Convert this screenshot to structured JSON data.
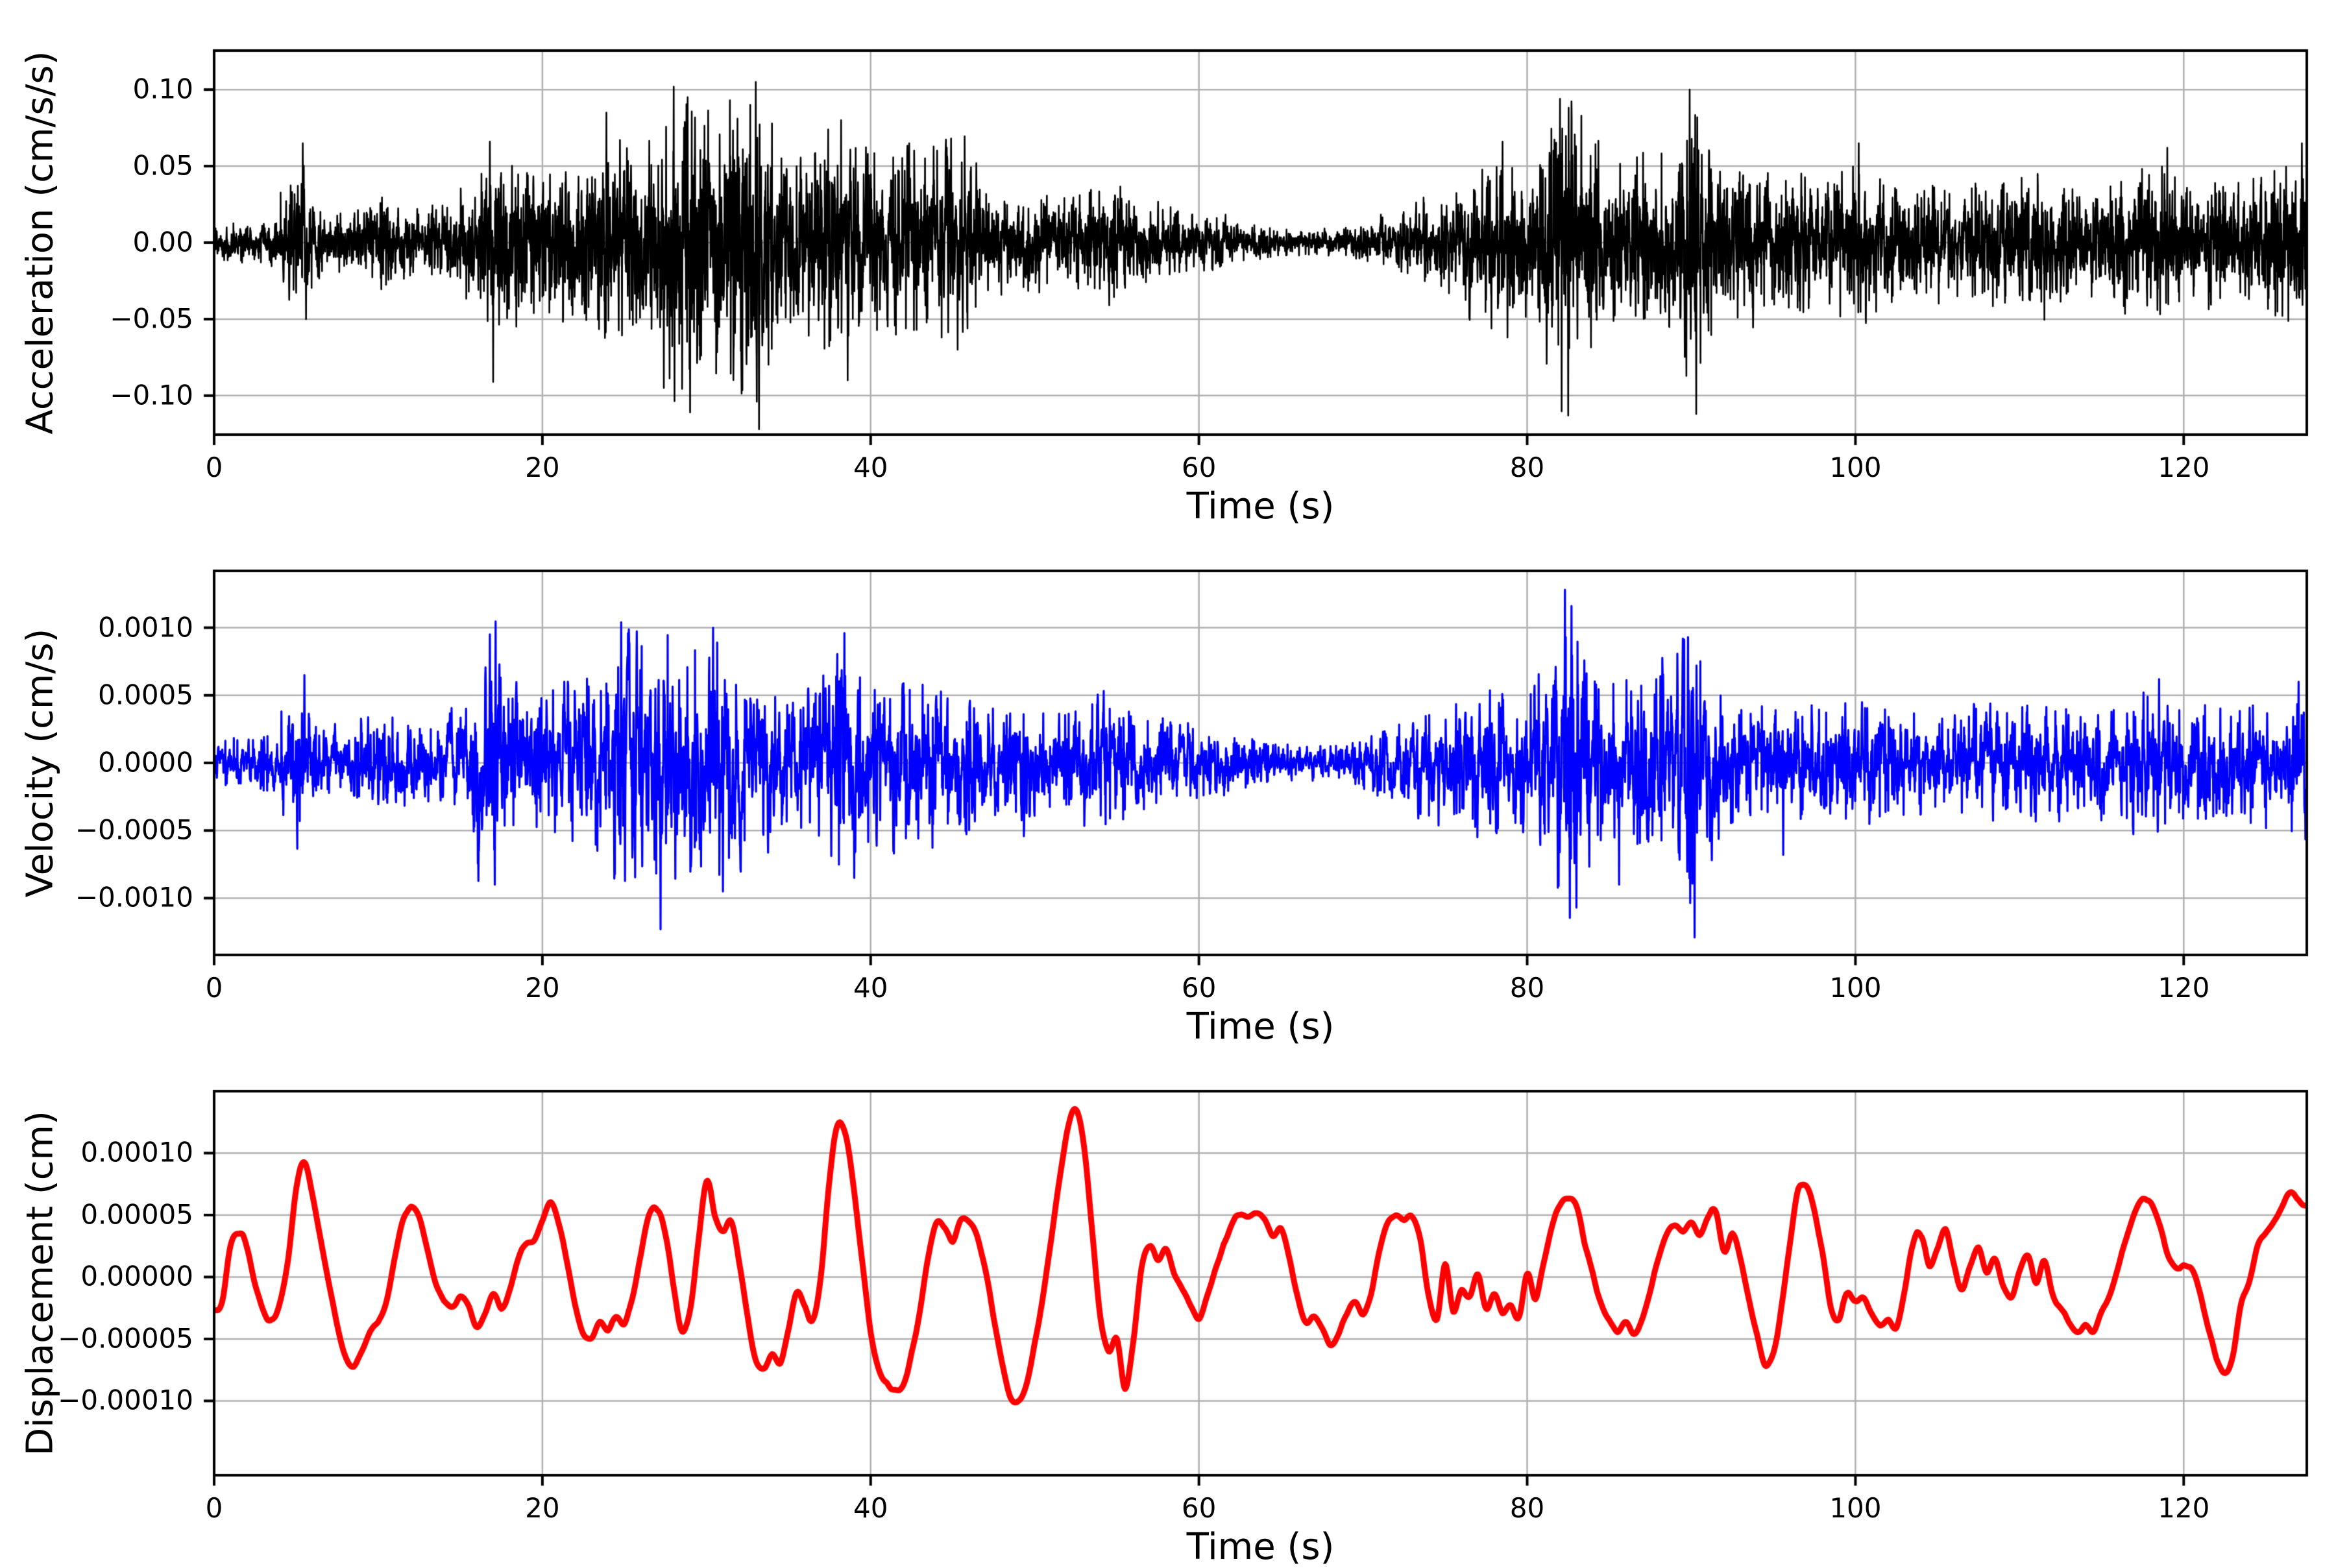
{
  "figure": {
    "background": "#ffffff",
    "grid_color": "#b0b0b0",
    "axes_color": "#000000"
  },
  "chart_data": [
    {
      "type": "line",
      "id": "acceleration",
      "ylabel": "Acceleration (cm/s/s)",
      "xlabel": "Time (s)",
      "unit": "cm/s/s",
      "line_color": "#000000",
      "grid": true,
      "legend": "none",
      "xlim": [
        0,
        127.5
      ],
      "ylim": [
        -0.1255,
        0.1255
      ],
      "xticks": [
        0,
        20,
        40,
        60,
        80,
        100,
        120
      ],
      "yticks": [
        0.1,
        0.05,
        0.0,
        -0.05,
        -0.1
      ],
      "ytick_labels": [
        "0.10",
        "0.05",
        "0.00",
        "−0.05",
        "−0.10"
      ],
      "signal": "broadband seismic noise; per-second peak-amplitude envelope below",
      "envelope_step_s": 1,
      "envelope": [
        0.013,
        0.014,
        0.013,
        0.015,
        0.018,
        0.055,
        0.03,
        0.02,
        0.022,
        0.025,
        0.03,
        0.028,
        0.025,
        0.022,
        0.025,
        0.03,
        0.045,
        0.075,
        0.055,
        0.05,
        0.055,
        0.05,
        0.06,
        0.055,
        0.065,
        0.07,
        0.06,
        0.075,
        0.095,
        0.105,
        0.1,
        0.095,
        0.11,
        0.115,
        0.07,
        0.06,
        0.06,
        0.07,
        0.08,
        0.06,
        0.075,
        0.06,
        0.07,
        0.06,
        0.065,
        0.07,
        0.055,
        0.04,
        0.035,
        0.03,
        0.032,
        0.03,
        0.035,
        0.035,
        0.04,
        0.042,
        0.03,
        0.025,
        0.025,
        0.022,
        0.02,
        0.018,
        0.015,
        0.013,
        0.012,
        0.011,
        0.009,
        0.008,
        0.009,
        0.011,
        0.013,
        0.016,
        0.02,
        0.025,
        0.03,
        0.035,
        0.04,
        0.045,
        0.06,
        0.055,
        0.05,
        0.07,
        0.1,
        0.095,
        0.06,
        0.055,
        0.06,
        0.065,
        0.06,
        0.08,
        0.11,
        0.07,
        0.055,
        0.05,
        0.045,
        0.05,
        0.045,
        0.05,
        0.045,
        0.05,
        0.055,
        0.05,
        0.04,
        0.042,
        0.038,
        0.04,
        0.035,
        0.04,
        0.045,
        0.04,
        0.045,
        0.05,
        0.045,
        0.04,
        0.035,
        0.04,
        0.045,
        0.05,
        0.055,
        0.05,
        0.04,
        0.042,
        0.045,
        0.04,
        0.045,
        0.05,
        0.055,
        0.06
      ],
      "spikes": [
        {
          "t": 5.4,
          "v": 0.065
        },
        {
          "t": 5.6,
          "v": -0.05
        },
        {
          "t": 16.8,
          "v": 0.066
        },
        {
          "t": 17.0,
          "v": -0.091
        },
        {
          "t": 23.9,
          "v": 0.085
        },
        {
          "t": 27.4,
          "v": -0.095
        },
        {
          "t": 28.0,
          "v": 0.102
        },
        {
          "t": 29.0,
          "v": -0.111
        },
        {
          "t": 33.0,
          "v": 0.105
        },
        {
          "t": 33.2,
          "v": -0.122
        },
        {
          "t": 38.2,
          "v": 0.08
        },
        {
          "t": 38.6,
          "v": -0.09
        },
        {
          "t": 44.9,
          "v": 0.068
        },
        {
          "t": 45.3,
          "v": -0.07
        },
        {
          "t": 78.5,
          "v": 0.066
        },
        {
          "t": 78.8,
          "v": -0.062
        },
        {
          "t": 82.0,
          "v": 0.094
        },
        {
          "t": 82.5,
          "v": -0.113
        },
        {
          "t": 83.3,
          "v": 0.083
        },
        {
          "t": 89.9,
          "v": 0.1
        },
        {
          "t": 90.3,
          "v": -0.112
        },
        {
          "t": 100.2,
          "v": 0.065
        },
        {
          "t": 119.0,
          "v": 0.062
        },
        {
          "t": 127.2,
          "v": 0.065
        }
      ]
    },
    {
      "type": "line",
      "id": "velocity",
      "ylabel": "Velocity (cm/s)",
      "xlabel": "Time (s)",
      "unit": "cm/s",
      "line_color": "#0000ff",
      "grid": true,
      "legend": "none",
      "xlim": [
        0,
        127.5
      ],
      "ylim": [
        -0.00142,
        0.00142
      ],
      "xticks": [
        0,
        20,
        40,
        60,
        80,
        100,
        120
      ],
      "yticks": [
        0.001,
        0.0005,
        0.0,
        -0.0005,
        -0.001
      ],
      "ytick_labels": [
        "0.0010",
        "0.0005",
        "0.0000",
        "−0.0005",
        "−0.0010"
      ],
      "signal": "band-passed seismic noise; per-second peak-amplitude envelope below",
      "envelope_step_s": 1,
      "envelope": [
        0.00018,
        0.0002,
        0.00018,
        0.0002,
        0.00025,
        0.00062,
        0.0003,
        0.00022,
        0.00025,
        0.0003,
        0.00035,
        0.0004,
        0.00032,
        0.0003,
        0.00032,
        0.00035,
        0.0006,
        0.00095,
        0.0006,
        0.00055,
        0.0006,
        0.00065,
        0.0007,
        0.00065,
        0.0008,
        0.00105,
        0.0008,
        0.00122,
        0.0008,
        0.0009,
        0.001,
        0.0009,
        0.0007,
        0.0006,
        0.00055,
        0.0005,
        0.00055,
        0.0007,
        0.00095,
        0.0008,
        0.0006,
        0.00055,
        0.0006,
        0.00065,
        0.0006,
        0.00055,
        0.0006,
        0.0005,
        0.00045,
        0.0004,
        0.00045,
        0.0004,
        0.00042,
        0.00045,
        0.0005,
        0.00048,
        0.0004,
        0.00035,
        0.00035,
        0.0003,
        0.00028,
        0.00025,
        0.00022,
        0.0002,
        0.00018,
        0.00016,
        0.00014,
        0.00013,
        0.00014,
        0.00016,
        0.0002,
        0.00025,
        0.0003,
        0.00035,
        0.0004,
        0.00045,
        0.0005,
        0.00055,
        0.0006,
        0.00055,
        0.0006,
        0.0008,
        0.00128,
        0.00115,
        0.0007,
        0.0006,
        0.00065,
        0.0007,
        0.00065,
        0.0008,
        0.00125,
        0.0007,
        0.0005,
        0.00045,
        0.0004,
        0.00045,
        0.0004,
        0.00045,
        0.0004,
        0.00045,
        0.0005,
        0.00045,
        0.0004,
        0.00042,
        0.00038,
        0.0004,
        0.00038,
        0.0004,
        0.00045,
        0.0004,
        0.00045,
        0.0005,
        0.00045,
        0.0004,
        0.00038,
        0.0004,
        0.00045,
        0.0005,
        0.00055,
        0.0005,
        0.00042,
        0.00045,
        0.00048,
        0.00042,
        0.00045,
        0.0005,
        0.00055,
        0.0006
      ],
      "spikes": [
        {
          "t": 5.5,
          "v": 0.00065
        },
        {
          "t": 16.8,
          "v": 0.00095
        },
        {
          "t": 17.1,
          "v": -0.0009
        },
        {
          "t": 24.8,
          "v": 0.00104
        },
        {
          "t": 27.2,
          "v": -0.00123
        },
        {
          "t": 30.4,
          "v": 0.001
        },
        {
          "t": 31.0,
          "v": -0.00095
        },
        {
          "t": 38.4,
          "v": 0.00096
        },
        {
          "t": 39.0,
          "v": -0.00085
        },
        {
          "t": 82.3,
          "v": 0.00128
        },
        {
          "t": 82.7,
          "v": 0.00116
        },
        {
          "t": 83.0,
          "v": -0.00107
        },
        {
          "t": 85.6,
          "v": -0.0009
        },
        {
          "t": 89.8,
          "v": 0.00093
        },
        {
          "t": 90.2,
          "v": -0.00129
        },
        {
          "t": 95.6,
          "v": -0.00068
        },
        {
          "t": 118.5,
          "v": 0.00062
        },
        {
          "t": 127.0,
          "v": 0.0006
        }
      ]
    },
    {
      "type": "line",
      "id": "displacement",
      "ylabel": "Displacement (cm)",
      "xlabel": "Time (s)",
      "unit": "cm",
      "line_color": "#ff0000",
      "grid": true,
      "legend": "none",
      "xlim": [
        0,
        127.5
      ],
      "ylim": [
        -0.00016,
        0.00015
      ],
      "xticks": [
        0,
        20,
        40,
        60,
        80,
        100,
        120
      ],
      "yticks": [
        0.0001,
        5e-05,
        0.0,
        -5e-05,
        -0.0001
      ],
      "ytick_labels": [
        "0.00010",
        "0.00005",
        "0.00000",
        "−0.00005",
        "−0.00010"
      ],
      "signal": "smooth displacement trace sampled every 0.5 s; values in units of 1e-5 cm",
      "x_step": 0.5,
      "unit_scale": 1e-05,
      "values": [
        -2.7,
        -1.8,
        2.8,
        3.7,
        2.6,
        -0.5,
        -2.7,
        -3.6,
        -2.2,
        1.5,
        7.0,
        9.2,
        6.5,
        3.0,
        -0.5,
        -3.8,
        -6.4,
        -7.3,
        -6.2,
        -4.6,
        -3.6,
        -2.0,
        1.5,
        4.6,
        5.6,
        4.8,
        2.2,
        -0.4,
        -1.8,
        -2.6,
        -1.6,
        -2.2,
        -4.0,
        -3.0,
        -1.4,
        -2.4,
        -1.0,
        1.4,
        2.6,
        3.0,
        4.6,
        6.0,
        4.4,
        1.2,
        -2.2,
        -4.6,
        -4.9,
        -3.6,
        -4.2,
        -3.2,
        -3.8,
        -1.6,
        2.0,
        5.0,
        5.6,
        3.4,
        -0.8,
        -4.4,
        -2.6,
        3.0,
        7.8,
        5.2,
        3.6,
        4.6,
        1.2,
        -3.2,
        -6.6,
        -7.4,
        -6.2,
        -6.8,
        -4.2,
        -1.2,
        -2.4,
        -3.4,
        0.6,
        8.0,
        12.4,
        11.2,
        6.6,
        1.0,
        -4.4,
        -7.6,
        -8.8,
        -9.0,
        -8.4,
        -6.0,
        -2.8,
        1.6,
        4.4,
        4.0,
        3.0,
        4.6,
        4.4,
        3.2,
        0.6,
        -3.2,
        -6.8,
        -9.6,
        -10.0,
        -8.6,
        -5.4,
        -1.6,
        3.0,
        8.0,
        12.0,
        13.4,
        10.4,
        3.6,
        -3.4,
        -6.0,
        -5.0,
        -9.0,
        -5.2,
        0.6,
        2.4,
        1.2,
        2.2,
        0.2,
        -1.0,
        -2.4,
        -3.4,
        -1.4,
        0.6,
        2.4,
        4.2,
        5.0,
        4.8,
        5.2,
        4.6,
        3.4,
        4.0,
        1.8,
        -1.4,
        -3.6,
        -3.0,
        -4.0,
        -5.4,
        -4.6,
        -3.0,
        -2.0,
        -3.0,
        -1.2,
        2.2,
        4.6,
        5.0,
        4.6,
        5.0,
        3.0,
        -1.6,
        -3.2,
        1.2,
        -2.6,
        -1.0,
        -1.6,
        0.2,
        -2.8,
        -1.4,
        -3.0,
        -2.4,
        -3.4,
        0.4,
        -1.8,
        1.0,
        4.0,
        6.0,
        6.5,
        5.8,
        3.0,
        0.4,
        -2.0,
        -3.6,
        -4.4,
        -3.6,
        -4.7,
        -3.4,
        -1.2,
        1.6,
        3.6,
        4.2,
        3.8,
        4.4,
        3.4,
        4.6,
        5.2,
        2.0,
        3.4,
        1.4,
        -1.8,
        -4.8,
        -7.2,
        -6.0,
        -2.4,
        2.6,
        7.0,
        7.4,
        5.4,
        2.0,
        -2.3,
        -3.5,
        -1.4,
        -2.2,
        -1.6,
        -3.0,
        -3.7,
        -3.4,
        -4.0,
        -1.2,
        2.6,
        3.3,
        0.9,
        2.4,
        3.7,
        1.0,
        -1.2,
        0.8,
        2.3,
        0.4,
        1.5,
        -0.8,
        -1.7,
        0.6,
        1.8,
        -0.6,
        1.4,
        -1.4,
        -2.4,
        -3.5,
        -4.3,
        -3.8,
        -4.4,
        -2.6,
        -1.4,
        0.8,
        3.2,
        5.2,
        6.3,
        6.0,
        4.4,
        1.8,
        0.9,
        1.1,
        0.8,
        -1.2,
        -4.0,
        -6.6,
        -7.9,
        -6.4,
        -2.2,
        -0.4,
        2.5,
        3.4,
        4.3,
        5.6,
        6.7,
        5.9,
        5.7
      ]
    }
  ]
}
